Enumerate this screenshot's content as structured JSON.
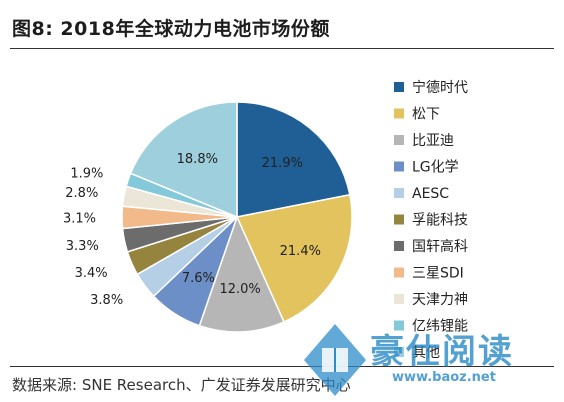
{
  "title": "图8:  2018年全球动力电池市场份额",
  "source": "数据来源:  SNE Research、广发证券发展研究中心",
  "watermark": {
    "text": "豪仕阅读",
    "url": "www.baoz.net"
  },
  "chart_data": {
    "type": "pie",
    "title": "",
    "start": "12 o'clock",
    "direction": "clockwise",
    "legend_position": "right",
    "value_format": "percent, 1 decimal",
    "slices": [
      {
        "label": "宁德时代",
        "value": 21.9,
        "color": "#1f5f95"
      },
      {
        "label": "松下",
        "value": 21.4,
        "color": "#e2c35d"
      },
      {
        "label": "比亚迪",
        "value": 12.0,
        "color": "#b6b6b6"
      },
      {
        "label": "LG化学",
        "value": 7.6,
        "color": "#6d8fc7"
      },
      {
        "label": "AESC",
        "value": 3.8,
        "color": "#b5cfe6"
      },
      {
        "label": "孚能科技",
        "value": 3.4,
        "color": "#94843e"
      },
      {
        "label": "国轩高科",
        "value": 3.3,
        "color": "#6c6c6c"
      },
      {
        "label": "三星SDI",
        "value": 3.1,
        "color": "#f2b98a"
      },
      {
        "label": "天津力神",
        "value": 2.8,
        "color": "#ece6d8"
      },
      {
        "label": "亿纬锂能",
        "value": 1.9,
        "color": "#84c9d9"
      },
      {
        "label": "其他",
        "value": 18.8,
        "color": "#9ecfdc"
      }
    ]
  }
}
